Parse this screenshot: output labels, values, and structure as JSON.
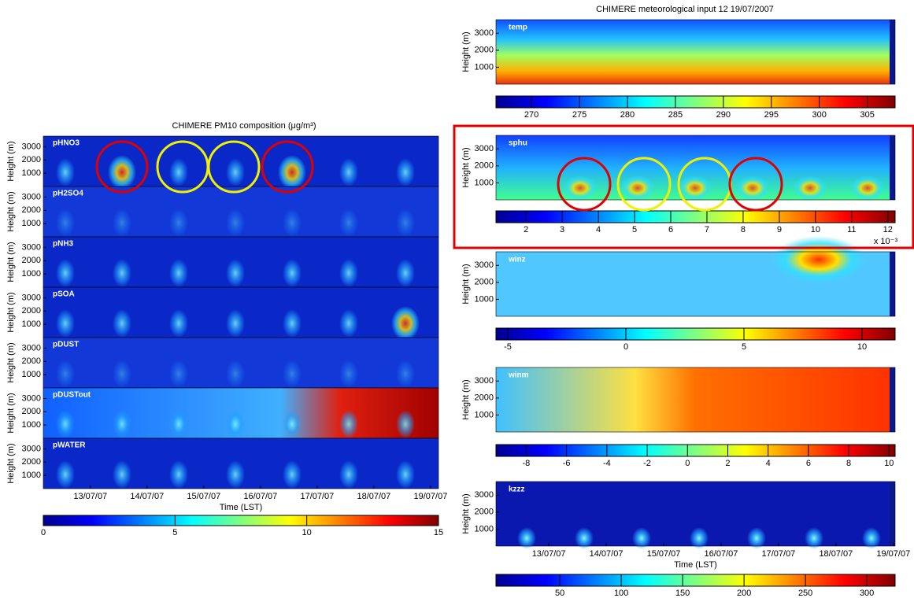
{
  "left": {
    "title": "CHIMERE PM10 composition (μg/m³)",
    "ylabel": "Height (m)",
    "ylim": [
      0,
      3800
    ],
    "yticks": [
      1000,
      2000,
      3000
    ],
    "panels": [
      "pHNO3",
      "pH2SO4",
      "pNH3",
      "pSOA",
      "pDUST",
      "pDUSTout",
      "pWATER"
    ],
    "xlim": [
      0.17,
      7.14
    ],
    "xticks": [
      {
        "value": 1,
        "label": "13/07/07"
      },
      {
        "value": 2,
        "label": "14/07/07"
      },
      {
        "value": 3,
        "label": "15/07/07"
      },
      {
        "value": 4,
        "label": "16/07/07"
      },
      {
        "value": 5,
        "label": "17/07/07"
      },
      {
        "value": 6,
        "label": "18/07/07"
      },
      {
        "value": 7,
        "label": "19/07/07"
      }
    ],
    "xlabel": "Time (LST)",
    "colorbar": {
      "clim": [
        0,
        15
      ],
      "ticks": [
        0,
        5,
        10,
        15
      ]
    }
  },
  "right": {
    "title": "CHIMERE meteorological input   12 19/07/2007",
    "ylabel": "Height (m)",
    "ylim": [
      0,
      3800
    ],
    "yticks": [
      1000,
      2000,
      3000
    ],
    "panels": [
      {
        "label": "temp",
        "clim": [
          266.3,
          307.9
        ],
        "ticks": [
          270,
          275,
          280,
          285,
          290,
          295,
          300,
          305
        ]
      },
      {
        "label": "sphu",
        "clim": [
          1.17,
          12.2
        ],
        "ticks": [
          2,
          3,
          4,
          5,
          6,
          7,
          8,
          9,
          10,
          11,
          12
        ],
        "scale_label": "x 10⁻³"
      },
      {
        "label": "winz",
        "clim": [
          -5.5,
          11.4
        ],
        "ticks": [
          -5,
          0,
          5,
          10
        ]
      },
      {
        "label": "winm",
        "clim": [
          -9.5,
          10.3
        ],
        "ticks": [
          -8,
          -6,
          -4,
          -2,
          0,
          2,
          4,
          6,
          8,
          10
        ]
      },
      {
        "label": "kzzz",
        "clim": [
          -2,
          323
        ],
        "ticks": [
          50,
          100,
          150,
          200,
          250,
          300
        ]
      }
    ],
    "xlim": [
      0.08,
      7.03
    ],
    "xticks": [
      {
        "value": 1,
        "label": "13/07/07"
      },
      {
        "value": 2,
        "label": "14/07/07"
      },
      {
        "value": 3,
        "label": "15/07/07"
      },
      {
        "value": 4,
        "label": "16/07/07"
      },
      {
        "value": 5,
        "label": "17/07/07"
      },
      {
        "value": 6,
        "label": "18/07/07"
      },
      {
        "value": 7,
        "label": "19/07/07"
      }
    ],
    "xlabel": "Time (LST)"
  }
}
